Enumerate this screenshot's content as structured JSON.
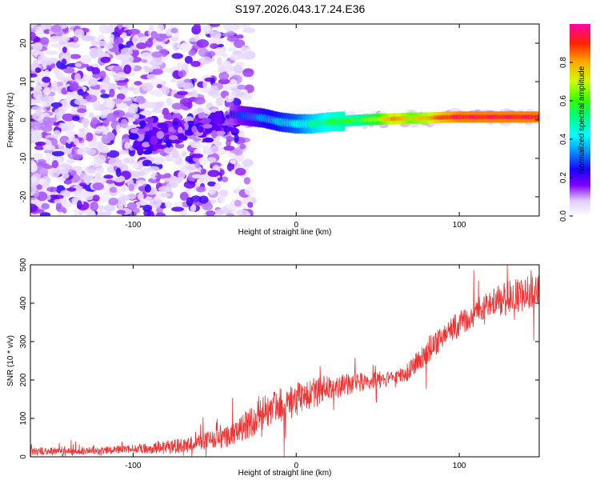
{
  "title": "S197.2026.043.17.24.E36",
  "colors": {
    "snr_line": "#ee3333",
    "axis": "#000000",
    "ridge_outline": "#000000"
  },
  "chart_data": [
    {
      "type": "heatmap",
      "name": "spectrogram",
      "xlabel": "Height of straight line (km)",
      "ylabel": "Frequency (Hz)",
      "xlim": [
        -163,
        149
      ],
      "ylim": [
        -25,
        25
      ],
      "xticks": [
        -100,
        0,
        100
      ],
      "xtick_labels": [
        "-100",
        "0",
        "100"
      ],
      "yticks": [
        -20,
        -10,
        0,
        10,
        20
      ],
      "ytick_labels": [
        "-20",
        "-10",
        "0",
        "10",
        "20"
      ],
      "colorbar": {
        "label": "Normalized spectral amplitude",
        "range": [
          0,
          1
        ],
        "ticks": [
          0.0,
          0.2,
          0.4,
          0.6,
          0.8
        ],
        "tick_labels": [
          "0.0",
          "0.2",
          "0.4",
          "0.6",
          "0.8"
        ]
      },
      "ridge": {
        "x": [
          -40,
          -30,
          -20,
          -10,
          0,
          10,
          20,
          30,
          40,
          50,
          60,
          70,
          80,
          90,
          100,
          110,
          120,
          130,
          140,
          149
        ],
        "freq": [
          1.5,
          1.0,
          0.5,
          -0.5,
          -1.0,
          -1.0,
          -0.5,
          -0.3,
          0.0,
          0.2,
          0.3,
          0.5,
          0.5,
          0.7,
          0.8,
          0.8,
          0.8,
          0.8,
          0.8,
          0.8
        ],
        "amplitude": [
          0.25,
          0.3,
          0.35,
          0.38,
          0.42,
          0.5,
          0.55,
          0.6,
          0.62,
          0.7,
          0.85,
          0.75,
          0.8,
          0.9,
          0.95,
          0.95,
          0.95,
          0.95,
          0.95,
          0.95
        ]
      }
    },
    {
      "type": "line",
      "name": "snr",
      "xlabel": "Height of straight line (km)",
      "ylabel": "SNR (10 * v/v)",
      "xlim": [
        -163,
        149
      ],
      "ylim": [
        0,
        500
      ],
      "xticks": [
        -100,
        0,
        100
      ],
      "xtick_labels": [
        "-100",
        "0",
        "100"
      ],
      "yticks": [
        0,
        100,
        200,
        300,
        400,
        500
      ],
      "ytick_labels": [
        "0",
        "100",
        "200",
        "300",
        "400",
        "500"
      ],
      "trend": {
        "x": [
          -163,
          -140,
          -120,
          -100,
          -80,
          -60,
          -40,
          -30,
          -20,
          -10,
          0,
          10,
          20,
          30,
          40,
          50,
          60,
          70,
          75,
          80,
          90,
          100,
          110,
          120,
          130,
          140,
          149
        ],
        "y": [
          15,
          15,
          17,
          20,
          25,
          35,
          55,
          85,
          115,
          135,
          150,
          165,
          178,
          188,
          195,
          200,
          205,
          225,
          250,
          275,
          315,
          345,
          375,
          400,
          415,
          425,
          430
        ],
        "noise": [
          10,
          10,
          10,
          12,
          18,
          22,
          30,
          40,
          45,
          45,
          45,
          40,
          35,
          30,
          25,
          22,
          20,
          25,
          30,
          35,
          35,
          35,
          35,
          40,
          45,
          45,
          45
        ]
      }
    }
  ]
}
